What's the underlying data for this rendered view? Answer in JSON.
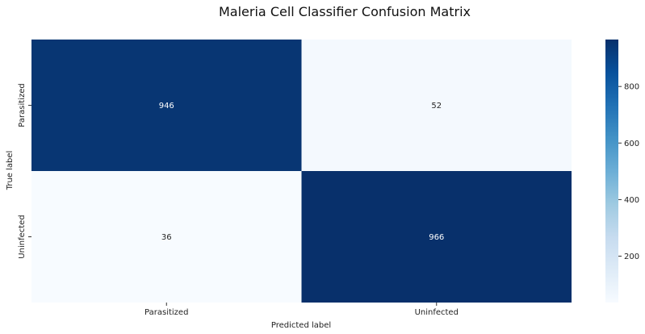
{
  "chart_data": {
    "type": "heatmap",
    "title": "Maleria Cell Classifier Confusion Matrix",
    "xlabel": "Predicted label",
    "ylabel": "True label",
    "x_categories": [
      "Parasitized",
      "Uninfected"
    ],
    "y_categories": [
      "Parasitized",
      "Uninfected"
    ],
    "values": [
      [
        946,
        52
      ],
      [
        36,
        966
      ]
    ],
    "colormap": "Blues",
    "colorbar": {
      "range": [
        36,
        966
      ],
      "ticks": [
        200,
        400,
        600,
        800
      ]
    },
    "grid": false
  },
  "colors": {
    "low": "#f7fbff",
    "high": "#08306b",
    "dark_text": "#262626",
    "light_text": "#ffffff"
  }
}
